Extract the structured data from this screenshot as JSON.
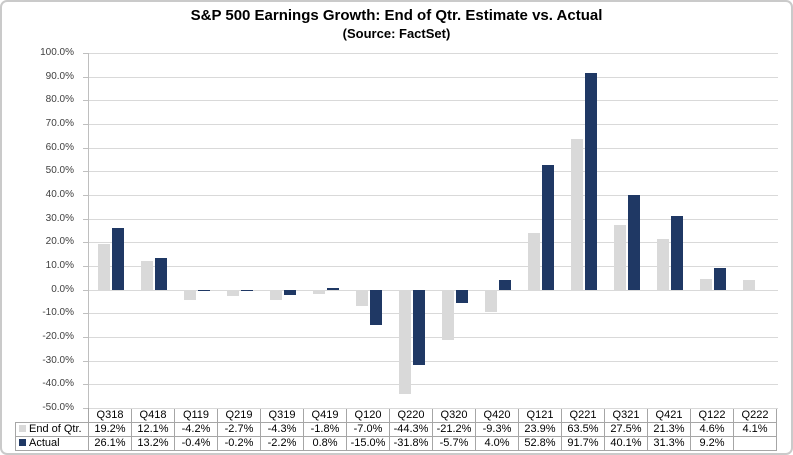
{
  "chart_data": {
    "type": "bar",
    "title": "S&P 500 Earnings Growth: End of Qtr. Estimate vs. Actual",
    "subtitle": "(Source: FactSet)",
    "categories": [
      "Q318",
      "Q418",
      "Q119",
      "Q219",
      "Q319",
      "Q419",
      "Q120",
      "Q220",
      "Q320",
      "Q420",
      "Q121",
      "Q221",
      "Q321",
      "Q421",
      "Q122",
      "Q222"
    ],
    "series": [
      {
        "name": "End of Qtr.",
        "color": "#D9D9D9",
        "values": [
          19.2,
          12.1,
          -4.2,
          -2.7,
          -4.3,
          -1.8,
          -7.0,
          -44.3,
          -21.2,
          -9.3,
          23.9,
          63.5,
          27.5,
          21.3,
          4.6,
          4.1
        ]
      },
      {
        "name": "Actual",
        "color": "#1F3864",
        "values": [
          26.1,
          13.2,
          -0.4,
          -0.2,
          -2.2,
          0.8,
          -15.0,
          -31.8,
          -5.7,
          4.0,
          52.8,
          91.7,
          40.1,
          31.3,
          9.2,
          null
        ]
      }
    ],
    "ylim": [
      -50,
      100
    ],
    "ytick_step": 10,
    "value_suffix": "%",
    "grid": true,
    "legend_position": "data-table-left-column",
    "xlabel": "",
    "ylabel": ""
  },
  "colors": {
    "gridline": "#D9D9D9",
    "axis_line": "#BFBFBF",
    "table_border": "#A6A6A6"
  }
}
